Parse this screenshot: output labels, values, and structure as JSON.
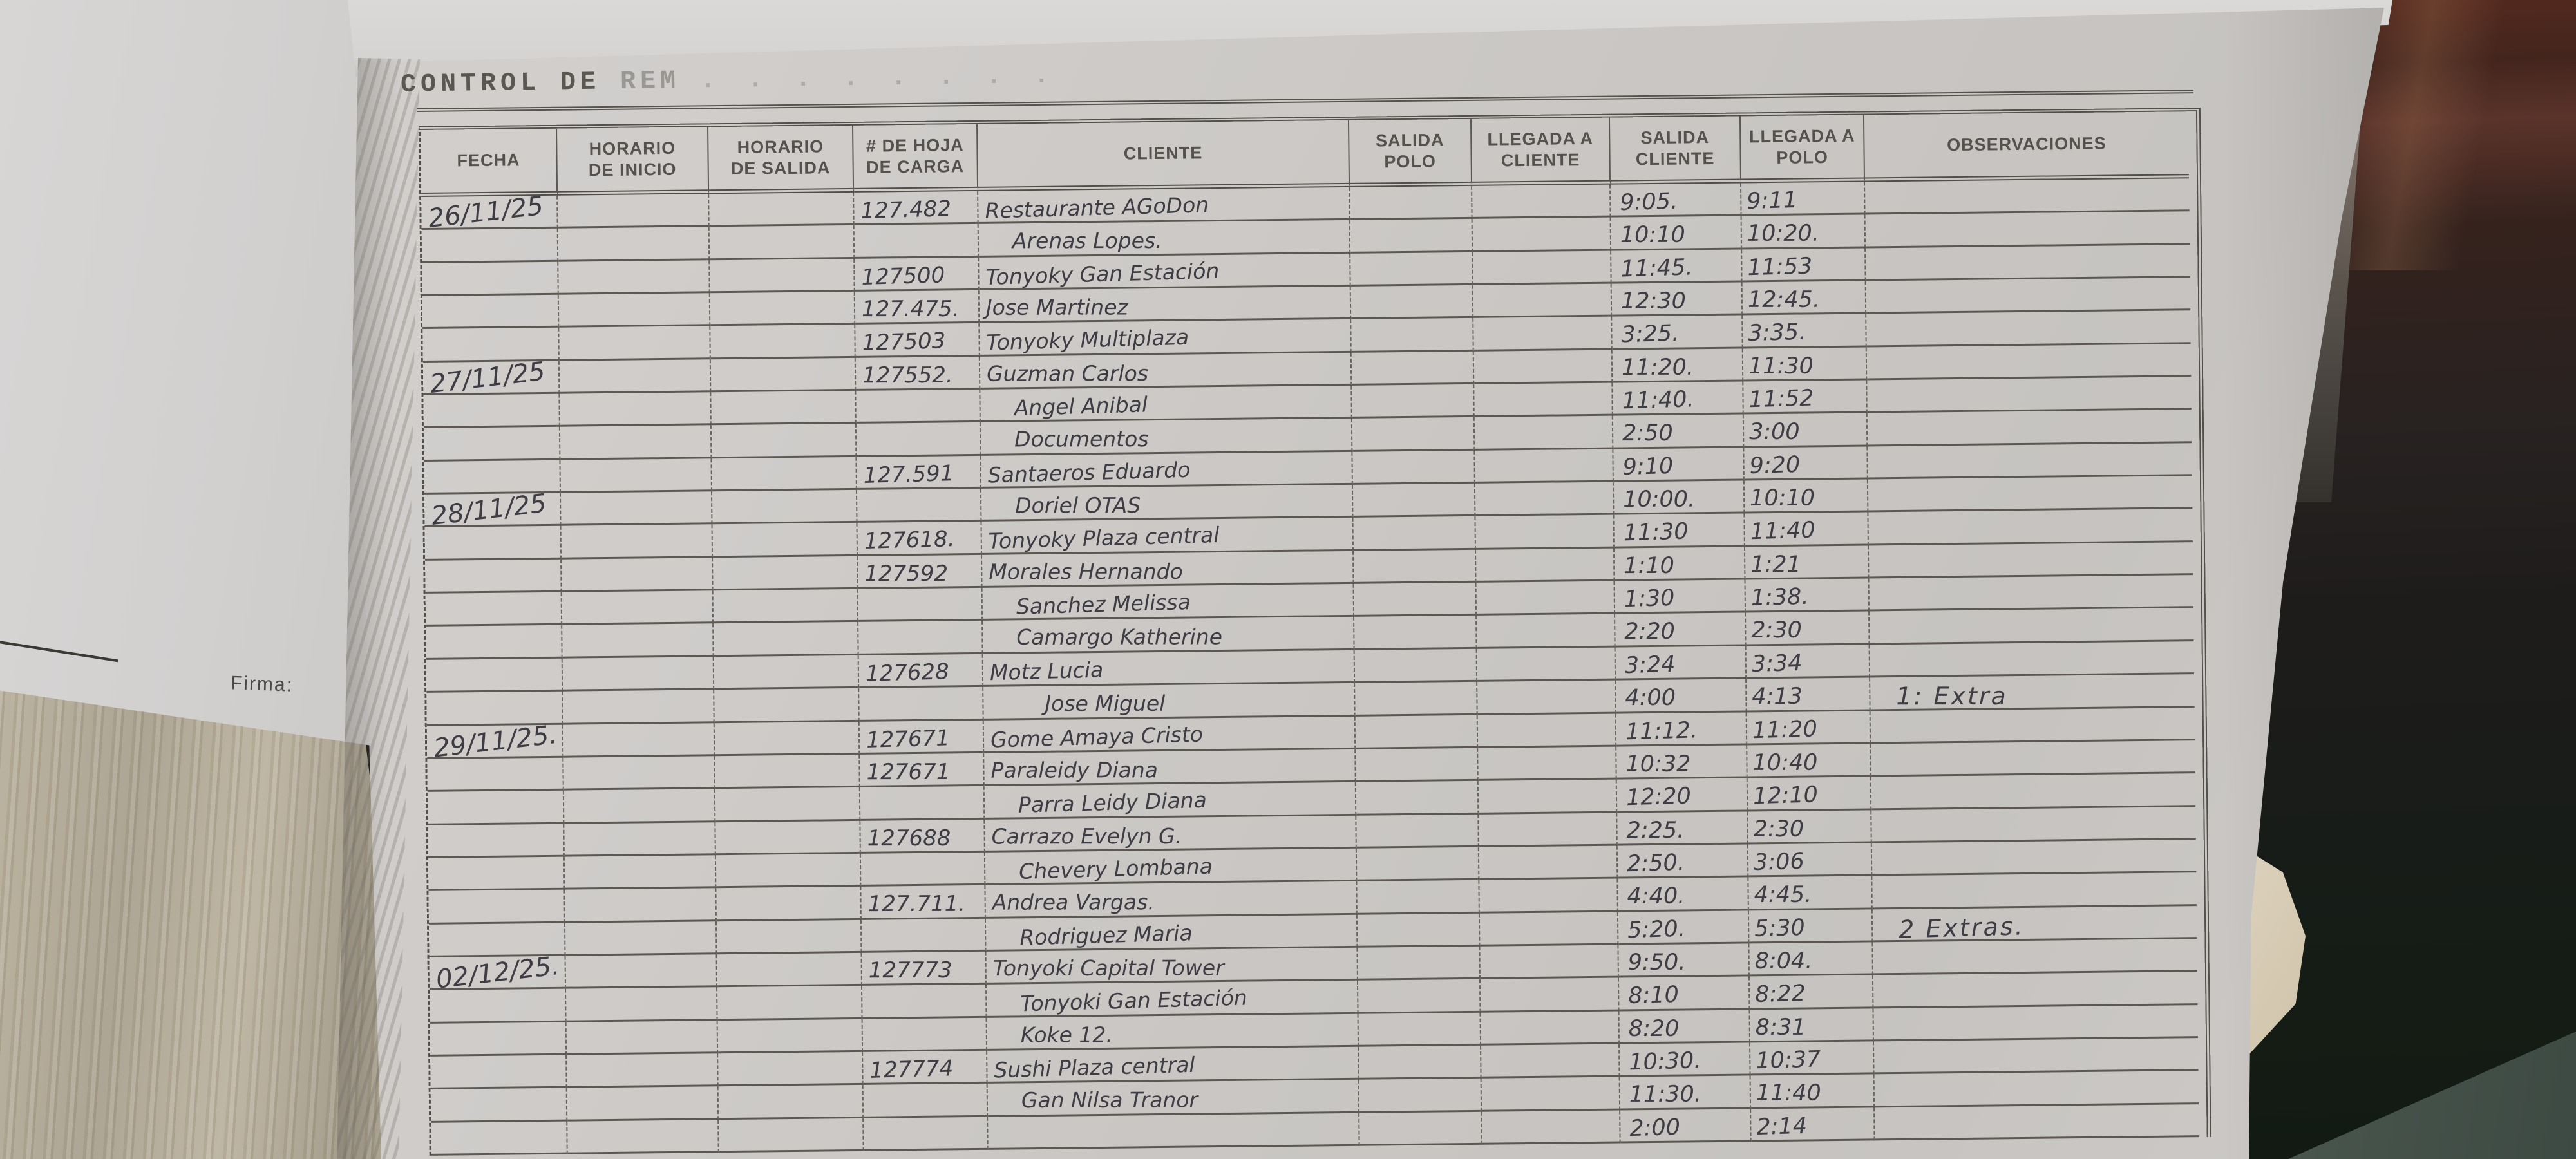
{
  "title": {
    "visible": "CONTROL DE",
    "faded": "REM",
    "trail": ". . .  . . . . ."
  },
  "firma_label": "Firma:",
  "colors": {
    "paper": "#cdcac7",
    "print_ink": "#514e49",
    "handwriting": "#3e3d44",
    "wood_table": "#b0a794",
    "dark_background": "#1e1c1b"
  },
  "table": {
    "columns": [
      {
        "key": "fecha",
        "lines": [
          "FECHA"
        ]
      },
      {
        "key": "inicio",
        "lines": [
          "HORARIO",
          "DE INICIO"
        ]
      },
      {
        "key": "salida",
        "lines": [
          "HORARIO",
          "DE SALIDA"
        ]
      },
      {
        "key": "hoja",
        "lines": [
          "# DE HOJA",
          "DE CARGA"
        ]
      },
      {
        "key": "cliente",
        "lines": [
          "CLIENTE"
        ]
      },
      {
        "key": "spolo",
        "lines": [
          "SALIDA",
          "POLO"
        ]
      },
      {
        "key": "llcliente",
        "lines": [
          "LLEGADA A",
          "CLIENTE"
        ]
      },
      {
        "key": "scliente",
        "lines": [
          "SALIDA",
          "CLIENTE"
        ]
      },
      {
        "key": "llpolo",
        "lines": [
          "LLEGADA A",
          "POLO"
        ]
      },
      {
        "key": "obs",
        "lines": [
          "OBSERVACIONES"
        ]
      }
    ],
    "rows": [
      {
        "fecha": "26/11/25",
        "hoja": "127.482",
        "cliente": "Restaurante AGoDon",
        "scliente": "9:05.",
        "llpolo": "9:11"
      },
      {
        "cliente": "Arenas Lopes.",
        "scliente": "10:10",
        "llpolo": "10:20.",
        "indent": 1
      },
      {
        "hoja": "127500",
        "cliente": "Tonyoky Gan Estación",
        "scliente": "11:45.",
        "llpolo": "11:53"
      },
      {
        "hoja": "127.475.",
        "cliente": "Jose Martinez",
        "scliente": "12:30",
        "llpolo": "12:45."
      },
      {
        "hoja": "127503",
        "cliente": "Tonyoky Multiplaza",
        "scliente": "3:25.",
        "llpolo": "3:35."
      },
      {
        "fecha": "27/11/25",
        "hoja": "127552.",
        "cliente": "Guzman Carlos",
        "scliente": "11:20.",
        "llpolo": "11:30"
      },
      {
        "cliente": "Angel Anibal",
        "scliente": "11:40.",
        "llpolo": "11:52",
        "indent": 1
      },
      {
        "cliente": "Documentos",
        "scliente": "2:50",
        "llpolo": "3:00",
        "indent": 1
      },
      {
        "hoja": "127.591",
        "cliente": "Santaeros Eduardo",
        "scliente": "9:10",
        "llpolo": "9:20"
      },
      {
        "fecha": "28/11/25",
        "cliente": "Doriel OTAS",
        "scliente": "10:00.",
        "llpolo": "10:10",
        "indent": 1
      },
      {
        "hoja": "127618.",
        "cliente": "Tonyoky Plaza central",
        "scliente": "11:30",
        "llpolo": "11:40"
      },
      {
        "hoja": "127592",
        "cliente": "Morales Hernando",
        "scliente": "1:10",
        "llpolo": "1:21"
      },
      {
        "cliente": "Sanchez Melissa",
        "scliente": "1:30",
        "llpolo": "1:38.",
        "indent": 1
      },
      {
        "cliente": "Camargo Katherine",
        "scliente": "2:20",
        "llpolo": "2:30",
        "indent": 1
      },
      {
        "hoja": "127628",
        "cliente": "Motz Lucia",
        "scliente": "3:24",
        "llpolo": "3:34"
      },
      {
        "cliente": "Jose Miguel",
        "scliente": "4:00",
        "llpolo": "4:13",
        "obs": "1: Extra",
        "indent": 2
      },
      {
        "fecha": "29/11/25.",
        "hoja": "127671",
        "cliente": "Gome Amaya Cristo",
        "scliente": "11:12.",
        "llpolo": "11:20"
      },
      {
        "hoja": "127671",
        "cliente": "Paraleidy Diana",
        "scliente": "10:32",
        "llpolo": "10:40"
      },
      {
        "cliente": "Parra Leidy Diana",
        "scliente": "12:20",
        "llpolo": "12:10",
        "indent": 1
      },
      {
        "hoja": "127688",
        "cliente": "Carrazo Evelyn G.",
        "scliente": "2:25.",
        "llpolo": "2:30"
      },
      {
        "cliente": "Chevery Lombana",
        "scliente": "2:50.",
        "llpolo": "3:06",
        "indent": 1
      },
      {
        "hoja": "127.711.",
        "cliente": "Andrea Vargas.",
        "scliente": "4:40.",
        "llpolo": "4:45."
      },
      {
        "cliente": "Rodriguez Maria",
        "scliente": "5:20.",
        "llpolo": "5:30",
        "obs": "2 Extras.",
        "indent": 1
      },
      {
        "fecha": "02/12/25.",
        "hoja": "127773",
        "cliente": "Tonyoki Capital Tower",
        "scliente": "9:50.",
        "llpolo": "8:04."
      },
      {
        "cliente": "Tonyoki Gan Estación",
        "scliente": "8:10",
        "llpolo": "8:22",
        "indent": 1
      },
      {
        "cliente": "Koke 12.",
        "scliente": "8:20",
        "llpolo": "8:31",
        "indent": 1
      },
      {
        "hoja": "127774",
        "cliente": "Sushi Plaza central",
        "scliente": "10:30.",
        "llpolo": "10:37"
      },
      {
        "cliente": "Gan Nilsa Tranor",
        "scliente": "11:30.",
        "llpolo": "11:40",
        "indent": 1
      },
      {
        "scliente": "2:00",
        "llpolo": "2:14"
      }
    ]
  }
}
